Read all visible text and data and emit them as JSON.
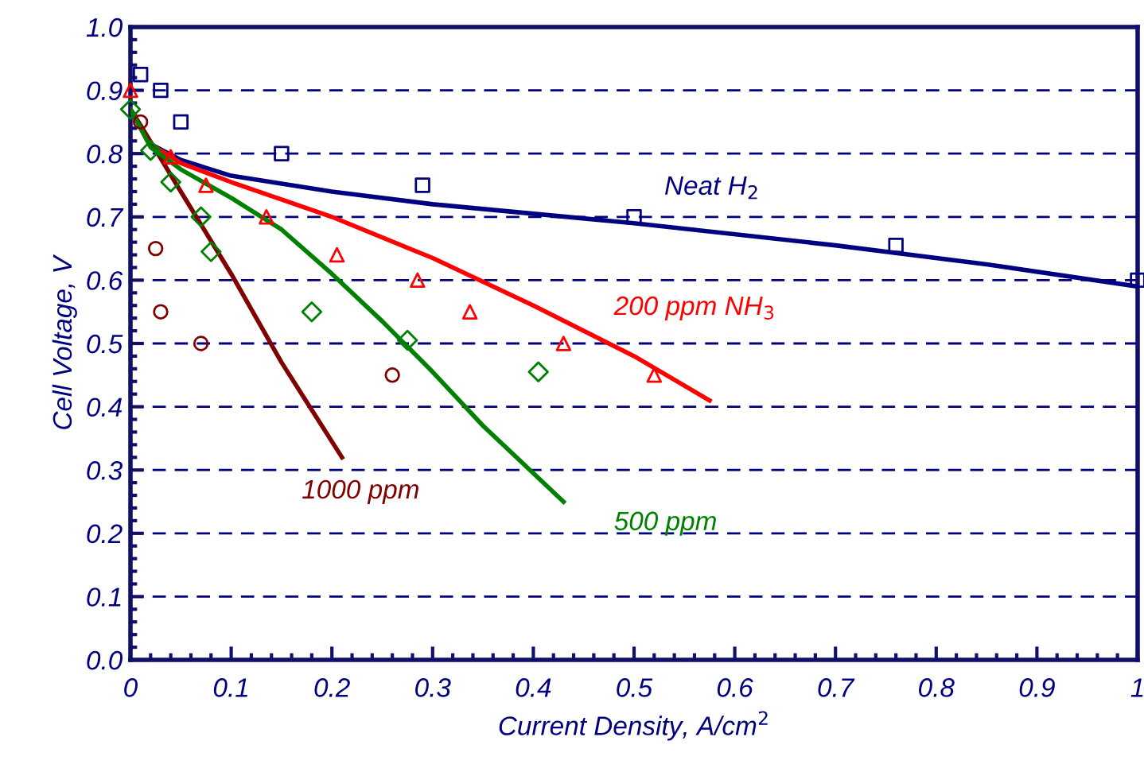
{
  "chart_data": {
    "type": "line",
    "xlabel": "Current Density, A/cm$^{2}$",
    "ylabel": "Cell Voltage, V",
    "xlim": [
      0,
      1
    ],
    "ylim": [
      0,
      1
    ],
    "xticks": [
      0,
      0.1,
      0.2,
      0.3,
      0.4,
      0.5,
      0.6,
      0.7,
      0.8,
      0.9,
      1
    ],
    "yticks": [
      {
        "value": 0,
        "label": "0.0"
      },
      0.1,
      0.2,
      0.3,
      0.4,
      0.5,
      0.6,
      0.7,
      0.8,
      0.9,
      {
        "value": 1,
        "label": "1.0"
      }
    ],
    "grid": "y",
    "legend": false,
    "series": [
      {
        "name": "Neat H$_{2}$",
        "color": "#000080",
        "x": [
          0,
          0.02,
          0.05,
          0.1,
          0.2,
          0.3,
          0.5,
          0.7,
          0.85,
          1.0
        ],
        "values": [
          0.87,
          0.815,
          0.79,
          0.765,
          0.74,
          0.72,
          0.69,
          0.655,
          0.625,
          0.59
        ]
      },
      {
        "name": "200 ppm NH$_{3}$",
        "color": "#ff0000",
        "x": [
          0,
          0.02,
          0.05,
          0.1,
          0.2,
          0.3,
          0.4,
          0.5,
          0.575
        ],
        "values": [
          0.87,
          0.815,
          0.785,
          0.755,
          0.7,
          0.635,
          0.56,
          0.48,
          0.41
        ]
      },
      {
        "name": "1000 ppm",
        "color": "#800000",
        "x": [
          0,
          0.01,
          0.05,
          0.1,
          0.15,
          0.21
        ],
        "values": [
          0.87,
          0.845,
          0.74,
          0.61,
          0.47,
          0.32
        ]
      },
      {
        "name": "500 ppm",
        "color": "#008000",
        "x": [
          0,
          0.02,
          0.05,
          0.1,
          0.15,
          0.2,
          0.25,
          0.3,
          0.35,
          0.43
        ],
        "values": [
          0.87,
          0.81,
          0.775,
          0.73,
          0.68,
          0.61,
          0.535,
          0.455,
          0.37,
          0.25
        ]
      },
      {
        "type": "scatter",
        "marker": "square",
        "color": "#000080",
        "x": [
          0.01,
          0.03,
          0.05,
          0.15,
          0.29,
          0.5,
          0.76,
          1.0
        ],
        "values": [
          0.925,
          0.9,
          0.85,
          0.8,
          0.75,
          0.7,
          0.655,
          0.6
        ]
      },
      {
        "type": "scatter",
        "marker": "triangle",
        "color": "#ff0000",
        "x": [
          0,
          0.04,
          0.075,
          0.135,
          0.205,
          0.285,
          0.337,
          0.43,
          0.52
        ],
        "values": [
          0.9,
          0.795,
          0.75,
          0.7,
          0.64,
          0.6,
          0.55,
          0.5,
          0.45
        ]
      },
      {
        "type": "scatter",
        "marker": "circle",
        "color": "#800000",
        "x": [
          0.01,
          0.025,
          0.03,
          0.07,
          0.26
        ],
        "values": [
          0.85,
          0.65,
          0.55,
          0.5,
          0.45
        ]
      },
      {
        "type": "scatter",
        "marker": "diamond",
        "color": "#008000",
        "x": [
          0,
          0.02,
          0.04,
          0.07,
          0.08,
          0.18,
          0.275,
          0.405
        ],
        "values": [
          0.87,
          0.805,
          0.755,
          0.7,
          0.645,
          0.55,
          0.505,
          0.455
        ]
      }
    ]
  }
}
